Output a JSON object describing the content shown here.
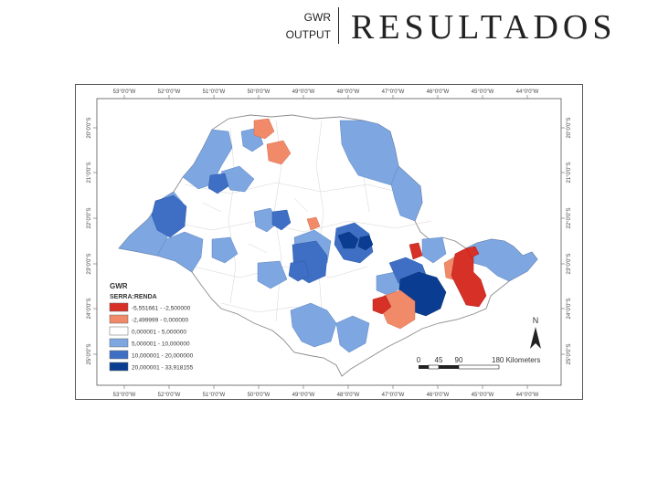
{
  "header": {
    "line1": "GWR",
    "line2": "OUTPUT",
    "title": "RESULTADOS"
  },
  "map": {
    "top_ticks": [
      "53°0'0\"W",
      "52°0'0\"W",
      "51°0'0\"W",
      "50°0'0\"W",
      "49°0'0\"W",
      "48°0'0\"W",
      "47°0'0\"W",
      "46°0'0\"W",
      "45°0'0\"W",
      "44°0'0\"W"
    ],
    "bottom_ticks": [
      "53°0'0\"W",
      "52°0'0\"W",
      "51°0'0\"W",
      "50°0'0\"W",
      "49°0'0\"W",
      "48°0'0\"W",
      "47°0'0\"W",
      "46°0'0\"W",
      "45°0'0\"W",
      "44°0'0\"W"
    ],
    "left_ticks": [
      "20°0'0\"S",
      "21°0'0\"S",
      "22°0'0\"S",
      "23°0'0\"S",
      "24°0'0\"S",
      "25°0'0\"S"
    ],
    "right_ticks": [
      "20°0'0\"S",
      "21°0'0\"S",
      "22°0'0\"S",
      "23°0'0\"S",
      "24°0'0\"S",
      "25°0'0\"S"
    ],
    "north_label": "N",
    "scale": {
      "labels": [
        "0",
        "45",
        "90",
        "180 Kilometers"
      ]
    }
  },
  "legend": {
    "title": "GWR",
    "subtitle": "SERRA:RENDA",
    "items": [
      {
        "label": "-5,551661 - -2,500000",
        "color": "#d73027"
      },
      {
        "label": "-2,499999 - 0,000000",
        "color": "#f08a69"
      },
      {
        "label": "0,000001 - 5,000000",
        "color": "#ffffff"
      },
      {
        "label": "5,000001 - 10,000000",
        "color": "#7ea6e0"
      },
      {
        "label": "10,000001 - 20,000000",
        "color": "#3e6fc4"
      },
      {
        "label": "20,000001 - 33,918155",
        "color": "#0a3d91"
      }
    ]
  }
}
